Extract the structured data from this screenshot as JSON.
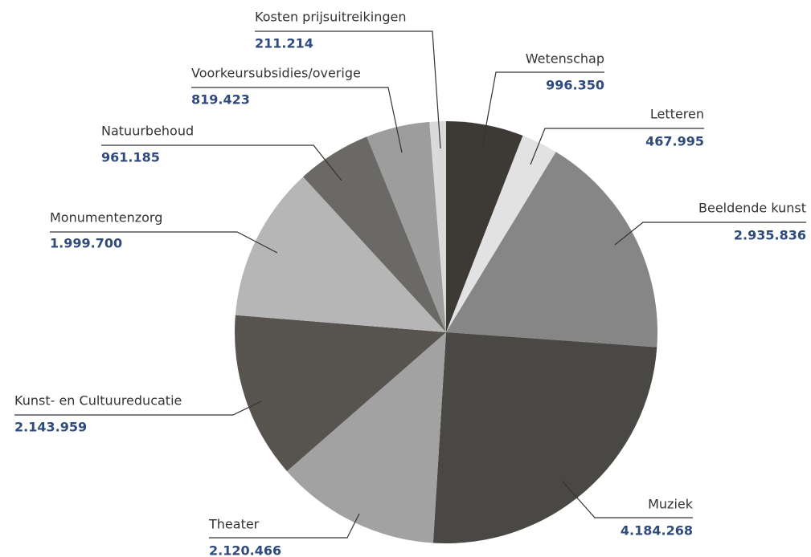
{
  "chart_data": {
    "type": "pie",
    "categories": [
      "Wetenschap",
      "Letteren",
      "Beeldende kunst",
      "Muziek",
      "Theater",
      "Kunst- en Cultuureducatie",
      "Monumentenzorg",
      "Natuurbehoud",
      "Voorkeursubsidies/overige",
      "Kosten prijsuitreikingen"
    ],
    "values": [
      996350,
      467995,
      2935836,
      4184268,
      2120466,
      2143959,
      1999700,
      961185,
      819423,
      211214
    ],
    "value_labels": [
      "996.350",
      "467.995",
      "2.935.836",
      "4.184.268",
      "2.120.466",
      "2.143.959",
      "1.999.700",
      "961.185",
      "819.423",
      "211.214"
    ],
    "colors": [
      "#3d3a36",
      "#e2e2e2",
      "#868686",
      "#4a4845",
      "#a2a2a2",
      "#575450",
      "#b6b6b6",
      "#6b6966",
      "#9d9d9d",
      "#dadada"
    ]
  }
}
